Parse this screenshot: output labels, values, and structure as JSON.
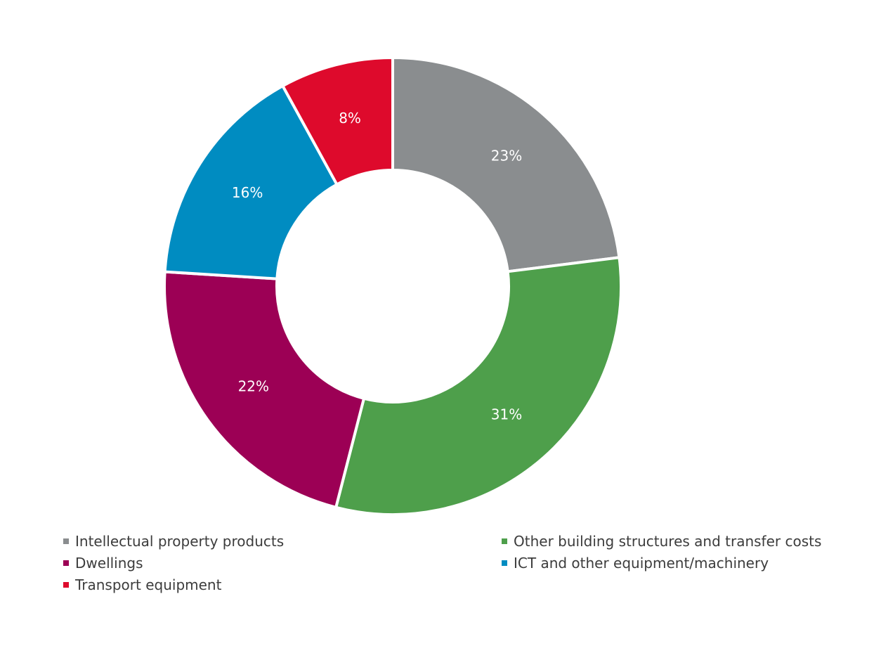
{
  "chart_data": {
    "type": "pie",
    "donut": true,
    "title": "",
    "categories": [
      "Intellectual property products",
      "Other building structures and transfer costs",
      "Dwellings",
      "ICT and other equipment/machinery",
      "Transport equipment"
    ],
    "values": [
      23,
      31,
      22,
      16,
      8
    ],
    "value_labels": [
      "23%",
      "31%",
      "22%",
      "16%",
      "8%"
    ],
    "colors": [
      "#8a8d8f",
      "#4e9f4b",
      "#9c0055",
      "#008cc1",
      "#de0a2c"
    ],
    "legend_position": "bottom",
    "slice_order_clockwise_from_top": [
      "Intellectual property products",
      "Other building structures and transfer costs",
      "Dwellings",
      "ICT and other equipment/machinery",
      "Transport equipment"
    ]
  }
}
